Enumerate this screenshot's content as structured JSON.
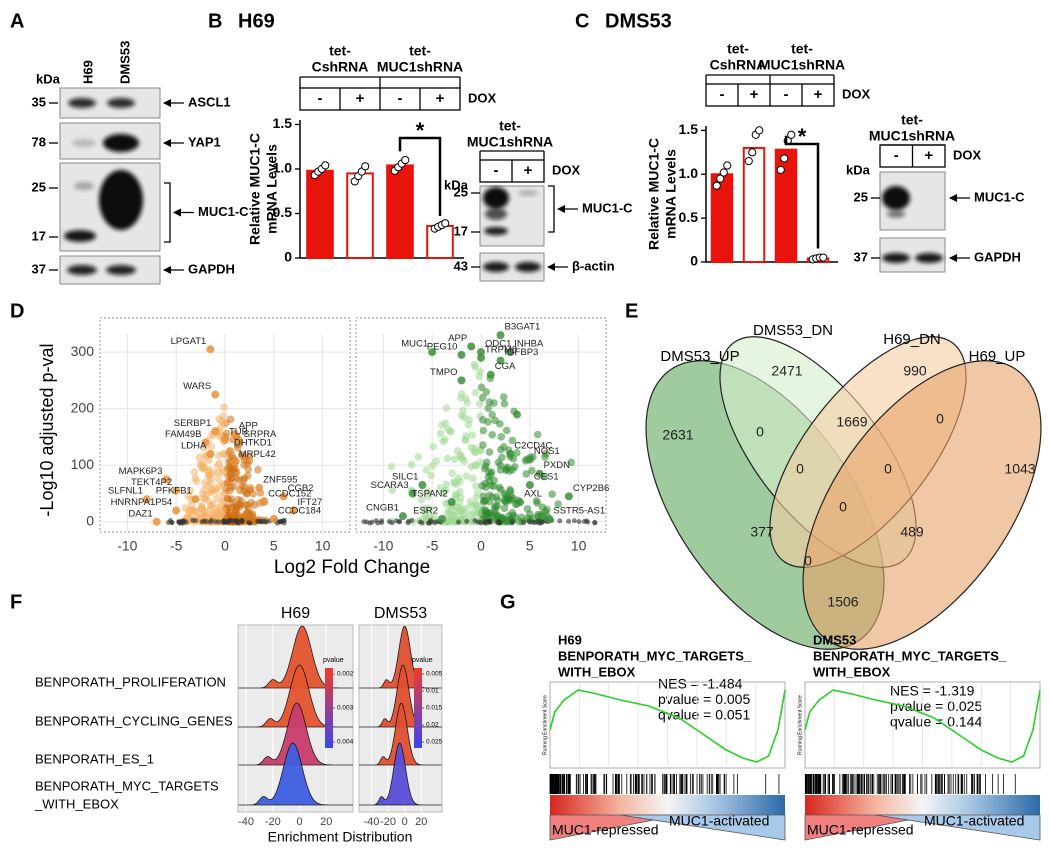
{
  "panel_a": {
    "letter": "A",
    "kda": "kDa",
    "lanes": [
      "H69",
      "DMS53"
    ],
    "markers": [
      35,
      78,
      25,
      17,
      37
    ],
    "proteins": [
      "ASCL1",
      "YAP1",
      "MUC1-C",
      "GAPDH"
    ]
  },
  "panel_b": {
    "letter": "B",
    "title": "H69",
    "groups": [
      [
        "tet-",
        "CshRNA"
      ],
      [
        "tet-",
        "MUC1shRNA"
      ]
    ],
    "dox": [
      "-",
      "+",
      "-",
      "+"
    ],
    "dox_label": "DOX",
    "significance": "*",
    "chart": {
      "type": "bar",
      "ylabel": [
        "Relative MUC1-C",
        "mRNA Levels"
      ],
      "ylim": [
        0,
        1.55
      ],
      "yticks": [
        0,
        0.5,
        {
          "value": 1,
          "label": "1.0"
        },
        1.5
      ],
      "values": [
        0.98,
        0.95,
        1.04,
        0.36
      ],
      "points": [
        [
          0.93,
          0.97,
          1.0,
          1.04
        ],
        [
          0.86,
          0.92,
          0.97,
          1.03
        ],
        [
          0.98,
          1.02,
          1.06,
          1.1
        ],
        [
          0.33,
          0.35,
          0.37,
          0.39
        ]
      ],
      "color": "#e8140c",
      "fills": [
        "#e8140c",
        "#ffffff",
        "#e8140c",
        "#ffffff"
      ]
    },
    "blot": {
      "group": [
        "tet-",
        "MUC1shRNA"
      ],
      "dox": [
        "-",
        "+"
      ],
      "dox_label": "DOX",
      "kda": "kDa",
      "markers": [
        25,
        17,
        43
      ],
      "proteins": [
        "MUC1-C",
        "β-actin"
      ]
    }
  },
  "panel_c": {
    "letter": "C",
    "title": "DMS53",
    "groups": [
      [
        "tet-",
        "CshRNA"
      ],
      [
        "tet-",
        "MUC1shRNA"
      ]
    ],
    "dox": [
      "-",
      "+",
      "-",
      "+"
    ],
    "dox_label": "DOX",
    "significance": "*",
    "chart": {
      "type": "bar",
      "ylabel": [
        "Relative MUC1-C",
        "mRNA Levels"
      ],
      "ylim": [
        0,
        1.55
      ],
      "yticks": [
        0,
        0.5,
        {
          "value": 1,
          "label": "1.0"
        },
        1.5
      ],
      "values": [
        1.0,
        1.3,
        1.28,
        0.04
      ],
      "points": [
        [
          0.87,
          0.95,
          1.02,
          1.1
        ],
        [
          1.15,
          1.25,
          1.45,
          1.5
        ],
        [
          1.05,
          1.18,
          1.38,
          1.45
        ],
        [
          0.03,
          0.04,
          0.05,
          0.05
        ]
      ],
      "color": "#e8140c",
      "fills": [
        "#e8140c",
        "#ffffff",
        "#e8140c",
        "#ffffff"
      ]
    },
    "blot": {
      "group": [
        "tet-",
        "MUC1shRNA"
      ],
      "dox": [
        "-",
        "+"
      ],
      "dox_label": "DOX",
      "kda": "kDa",
      "markers": [
        25,
        37
      ],
      "proteins": [
        "MUC1-C",
        "GAPDH"
      ]
    }
  },
  "panel_d": {
    "letter": "D",
    "xlabel": "Log2 Fold Change",
    "ylabel": "-Log10 adjusted p-val",
    "charts": [
      {
        "type": "scatter",
        "title": "H69",
        "xlim": [
          -12.8,
          12.8
        ],
        "ylim": [
          -18,
          332
        ],
        "xticks": [
          -10,
          -5,
          0,
          5,
          10
        ],
        "yticks": [
          0,
          100,
          200,
          300
        ],
        "color": "#e8923a",
        "points": {
          "labels": [
            "LPGAT1",
            "WARS",
            "SERBP1",
            "APP",
            "TUB",
            "FAM49B",
            "SRPRA",
            "DHTKD1",
            "LDHA",
            "MRPL42",
            "MAPK6P3",
            "TEKT4P2",
            "ZNF595",
            "SLFNL1",
            "PFKFB1",
            "CGB2",
            "CCDC152",
            "HNRNPA1P54",
            "IFT27",
            "DAZ1",
            "CCDC184"
          ],
          "x": [
            -1.5,
            -1,
            -1,
            1,
            0,
            -2,
            1.5,
            0.5,
            -1.5,
            1,
            -6,
            -5,
            3.5,
            -8,
            -3,
            6,
            4,
            -5,
            7,
            -7,
            5
          ],
          "y": [
            305,
            225,
            160,
            155,
            145,
            140,
            140,
            125,
            120,
            105,
            75,
            55,
            60,
            40,
            40,
            45,
            35,
            20,
            20,
            0,
            5
          ]
        }
      },
      {
        "type": "scatter",
        "title": "DMS53",
        "xlim": [
          -12.8,
          12.8
        ],
        "ylim": [
          -18,
          332
        ],
        "xticks": [
          -10,
          -5,
          0,
          5,
          10
        ],
        "color": "#3d8f3d",
        "points": {
          "labels": [
            "MUC1",
            "APP",
            "B3GAT1",
            "PEG10",
            "ODC1",
            "INHBA",
            "TRPM8",
            "IGFBP3",
            "TMPO",
            "CGA",
            "C2CD4C",
            "NOS1",
            "PXDN",
            "SILC1",
            "CES1",
            "SCARA3",
            "CYP2B6",
            "TSPAN2",
            "AXL",
            "CNGB1",
            "ESR2",
            "SSTR5-AS1"
          ],
          "x": [
            -5,
            -1,
            2,
            -2,
            0,
            3,
            0,
            2,
            -2,
            1,
            3,
            5,
            6,
            -6,
            5,
            -7,
            9,
            -3,
            4,
            -8,
            -4,
            7
          ],
          "y": [
            300,
            310,
            330,
            295,
            300,
            300,
            290,
            285,
            250,
            260,
            120,
            110,
            85,
            65,
            65,
            50,
            45,
            35,
            35,
            10,
            5,
            5
          ]
        }
      }
    ]
  },
  "panel_e": {
    "letter": "E",
    "sets": [
      "DMS53_UP",
      "DMS53_DN",
      "H69_DN",
      "H69_UP"
    ],
    "colors": [
      "#5fa85f",
      "#d6eecb",
      "#f5cda4",
      "#e8a46a"
    ],
    "counts": [
      2471,
      990,
      2631,
      0,
      1669,
      0,
      1043,
      0,
      0,
      0,
      377,
      0,
      489,
      1506
    ]
  },
  "panel_f": {
    "letter": "F",
    "categories": [
      "BENPORATH_PROLIFERATION",
      "BENPORATH_CYCLING_GENES",
      "BENPORATH_ES_1",
      [
        "BENPORATH_MYC_TARGETS",
        "_WITH_EBOX"
      ]
    ],
    "xlabel": "Enrichment Distribution",
    "charts": [
      {
        "type": "ridgeline",
        "title": "H69",
        "xlim": [
          -46,
          40
        ],
        "xticks": [
          -40,
          -20,
          0,
          20
        ],
        "peaks": [
          2,
          0,
          -2,
          -5
        ],
        "colors": [
          "#e4552e",
          "#e4552e",
          "#c83e6c",
          "#3f5ee0"
        ],
        "legend": {
          "title": "pvalue",
          "ticks": [
            0.002,
            0.003,
            0.004
          ],
          "colors": [
            "#f23a2a",
            "#3a45f0"
          ]
        }
      },
      {
        "type": "ridgeline",
        "title": "DMS53",
        "xlim": [
          -55,
          45
        ],
        "xticks": [
          -40,
          -20,
          0,
          20
        ],
        "peaks": [
          0,
          -2,
          -4,
          -6
        ],
        "colors": [
          "#e05030",
          "#e05030",
          "#e05030",
          "#5a4fd8"
        ],
        "legend": {
          "title": "pvalue",
          "ticks": [
            0.005,
            0.01,
            0.015,
            0.02,
            0.025
          ],
          "colors": [
            "#f23a2a",
            "#3a45f0"
          ]
        }
      }
    ]
  },
  "panel_g": {
    "letter": "G",
    "low_label": "MUC1-repressed",
    "high_label": "MUC1-activated",
    "plots": [
      {
        "title": [
          "H69",
          "BENPORATH_MYC_TARGETS_",
          "WITH_EBOX"
        ],
        "stats": [
          "NES = -1.484",
          "pvalue = 0.005",
          "qvalue = 0.051"
        ],
        "ylabel": "Running Enrichment Score"
      },
      {
        "title": [
          "DMS53",
          "BENPORATH_MYC_TARGETS_",
          "WITH_EBOX"
        ],
        "stats": [
          "NES = -1.319",
          "pvalue = 0.025",
          "qvalue = 0.144"
        ],
        "ylabel": "Running Enrichment Score"
      }
    ]
  }
}
